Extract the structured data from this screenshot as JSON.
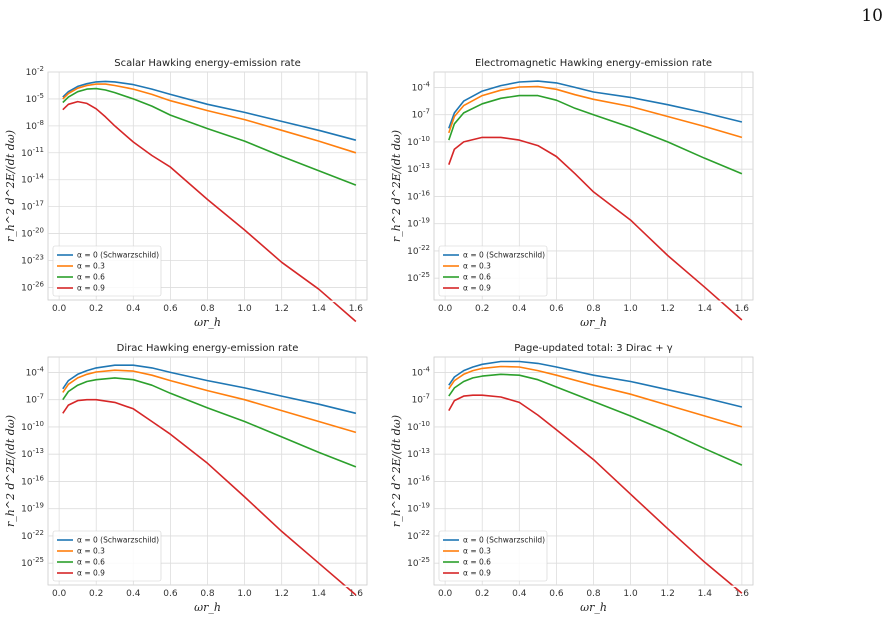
{
  "page_number": "10",
  "colors": {
    "alpha_0": "#1f77b4",
    "alpha_03": "#ff7f0e",
    "alpha_06": "#2ca02c",
    "alpha_09": "#d62728",
    "grid": "#dddddd",
    "background": "#ffffff"
  },
  "chart_data": [
    {
      "type": "line",
      "title": "Scalar Hawking energy-emission rate",
      "xlabel": "ωr_h",
      "ylabel": "r_h^2 d^2E/(dt dω)",
      "yscale": "log",
      "xlim": [
        -0.06,
        1.66
      ],
      "ylim_exp": [
        -27.4,
        -2
      ],
      "xticks": [
        "0.0",
        "0.2",
        "0.4",
        "0.6",
        "0.8",
        "1.0",
        "1.2",
        "1.4",
        "1.6"
      ],
      "yticks": [
        "10^-26",
        "10^-23",
        "10^-20",
        "10^-17",
        "10^-14",
        "10^-11",
        "10^-8",
        "10^-5",
        "10^-2"
      ],
      "grid": true,
      "legend": "lower-left",
      "x": [
        0.02,
        0.05,
        0.1,
        0.15,
        0.2,
        0.25,
        0.3,
        0.4,
        0.5,
        0.6,
        0.8,
        1.0,
        1.2,
        1.4,
        1.6
      ],
      "series": [
        {
          "name": "α = 0 (Schwarzschild)",
          "log10": [
            -4.8,
            -4.2,
            -3.6,
            -3.3,
            -3.1,
            -3.05,
            -3.1,
            -3.4,
            -3.9,
            -4.5,
            -5.6,
            -6.5,
            -7.5,
            -8.5,
            -9.6
          ]
        },
        {
          "name": "α = 0.3",
          "log10": [
            -5.0,
            -4.4,
            -3.8,
            -3.5,
            -3.35,
            -3.35,
            -3.5,
            -3.9,
            -4.5,
            -5.2,
            -6.3,
            -7.3,
            -8.5,
            -9.7,
            -11.0
          ]
        },
        {
          "name": "α = 0.6",
          "log10": [
            -5.4,
            -4.8,
            -4.2,
            -3.9,
            -3.85,
            -4.0,
            -4.3,
            -5.0,
            -5.8,
            -6.8,
            -8.3,
            -9.7,
            -11.4,
            -13.0,
            -14.6
          ]
        },
        {
          "name": "α = 0.9",
          "log10": [
            -6.2,
            -5.6,
            -5.3,
            -5.5,
            -6.1,
            -7.0,
            -8.0,
            -9.8,
            -11.3,
            -12.6,
            -16.2,
            -19.6,
            -23.2,
            -26.2,
            -29.8
          ]
        }
      ]
    },
    {
      "type": "line",
      "title": "Electromagnetic Hawking energy-emission rate",
      "xlabel": "ωr_h",
      "ylabel": "r_h^2 d^2E/(dt dω)",
      "yscale": "log",
      "xlim": [
        -0.06,
        1.66
      ],
      "ylim_exp": [
        -27.4,
        -2.3
      ],
      "xticks": [
        "0.0",
        "0.2",
        "0.4",
        "0.6",
        "0.8",
        "1.0",
        "1.2",
        "1.4",
        "1.6"
      ],
      "yticks": [
        "10^-25",
        "10^-22",
        "10^-19",
        "10^-16",
        "10^-13",
        "10^-10",
        "10^-7",
        "10^-4"
      ],
      "grid": true,
      "legend": "lower-left",
      "x": [
        0.02,
        0.05,
        0.1,
        0.2,
        0.3,
        0.4,
        0.5,
        0.6,
        0.7,
        0.8,
        1.0,
        1.2,
        1.4,
        1.6
      ],
      "series": [
        {
          "name": "α = 0 (Schwarzschild)",
          "log10": [
            -8.5,
            -6.8,
            -5.5,
            -4.4,
            -3.8,
            -3.4,
            -3.3,
            -3.5,
            -4.0,
            -4.5,
            -5.1,
            -5.9,
            -6.8,
            -7.8
          ]
        },
        {
          "name": "α = 0.3",
          "log10": [
            -9.0,
            -7.2,
            -6.0,
            -4.9,
            -4.3,
            -3.95,
            -3.9,
            -4.2,
            -4.8,
            -5.3,
            -6.1,
            -7.2,
            -8.3,
            -9.5
          ]
        },
        {
          "name": "α = 0.6",
          "log10": [
            -9.8,
            -8.0,
            -6.8,
            -5.8,
            -5.2,
            -4.9,
            -4.9,
            -5.4,
            -6.3,
            -7.0,
            -8.4,
            -10.0,
            -11.8,
            -13.5
          ]
        },
        {
          "name": "α = 0.9",
          "log10": [
            -12.5,
            -10.8,
            -10.0,
            -9.5,
            -9.5,
            -9.8,
            -10.4,
            -11.6,
            -13.5,
            -15.5,
            -18.6,
            -22.5,
            -26.0,
            -29.6
          ]
        }
      ]
    },
    {
      "type": "line",
      "title": "Dirac Hawking energy-emission rate",
      "xlabel": "ωr_h",
      "ylabel": "r_h^2 d^2E/(dt dω)",
      "yscale": "log",
      "xlim": [
        -0.06,
        1.66
      ],
      "ylim_exp": [
        -27.4,
        -2.3
      ],
      "xticks": [
        "0.0",
        "0.2",
        "0.4",
        "0.6",
        "0.8",
        "1.0",
        "1.2",
        "1.4",
        "1.6"
      ],
      "yticks": [
        "10^-25",
        "10^-22",
        "10^-19",
        "10^-16",
        "10^-13",
        "10^-10",
        "10^-7",
        "10^-4"
      ],
      "grid": true,
      "legend": "lower-left",
      "x": [
        0.02,
        0.05,
        0.1,
        0.15,
        0.2,
        0.3,
        0.4,
        0.5,
        0.6,
        0.8,
        1.0,
        1.2,
        1.4,
        1.6
      ],
      "series": [
        {
          "name": "α = 0 (Schwarzschild)",
          "log10": [
            -5.8,
            -4.9,
            -4.2,
            -3.8,
            -3.5,
            -3.2,
            -3.2,
            -3.5,
            -4.0,
            -4.9,
            -5.7,
            -6.6,
            -7.5,
            -8.5
          ]
        },
        {
          "name": "α = 0.3",
          "log10": [
            -6.2,
            -5.3,
            -4.6,
            -4.2,
            -3.95,
            -3.75,
            -3.85,
            -4.3,
            -4.9,
            -6.0,
            -7.0,
            -8.2,
            -9.4,
            -10.6
          ]
        },
        {
          "name": "α = 0.6",
          "log10": [
            -7.0,
            -6.1,
            -5.4,
            -5.0,
            -4.8,
            -4.6,
            -4.8,
            -5.4,
            -6.3,
            -7.9,
            -9.4,
            -11.1,
            -12.8,
            -14.4
          ]
        },
        {
          "name": "α = 0.9",
          "log10": [
            -8.5,
            -7.6,
            -7.1,
            -7.0,
            -7.0,
            -7.3,
            -8.0,
            -9.4,
            -10.8,
            -14.0,
            -17.7,
            -21.5,
            -25.0,
            -28.5
          ]
        }
      ]
    },
    {
      "type": "line",
      "title": "Page-updated total: 3 Dirac + γ",
      "xlabel": "ωr_h",
      "ylabel": "r_h^2 d^2E/(dt dω)",
      "yscale": "log",
      "xlim": [
        -0.06,
        1.66
      ],
      "ylim_exp": [
        -27.4,
        -2.3
      ],
      "xticks": [
        "0.0",
        "0.2",
        "0.4",
        "0.6",
        "0.8",
        "1.0",
        "1.2",
        "1.4",
        "1.6"
      ],
      "yticks": [
        "10^-25",
        "10^-22",
        "10^-19",
        "10^-16",
        "10^-13",
        "10^-10",
        "10^-7",
        "10^-4"
      ],
      "grid": true,
      "legend": "lower-left",
      "x": [
        0.02,
        0.05,
        0.1,
        0.15,
        0.2,
        0.3,
        0.4,
        0.5,
        0.6,
        0.8,
        1.0,
        1.2,
        1.4,
        1.6
      ],
      "series": [
        {
          "name": "α = 0 (Schwarzschild)",
          "log10": [
            -5.4,
            -4.5,
            -3.8,
            -3.4,
            -3.1,
            -2.8,
            -2.8,
            -3.0,
            -3.4,
            -4.3,
            -5.0,
            -5.9,
            -6.8,
            -7.8
          ]
        },
        {
          "name": "α = 0.3",
          "log10": [
            -5.8,
            -4.9,
            -4.2,
            -3.8,
            -3.55,
            -3.35,
            -3.4,
            -3.8,
            -4.3,
            -5.4,
            -6.4,
            -7.6,
            -8.8,
            -10.0
          ]
        },
        {
          "name": "α = 0.6",
          "log10": [
            -6.6,
            -5.7,
            -5.0,
            -4.6,
            -4.4,
            -4.2,
            -4.3,
            -4.8,
            -5.6,
            -7.2,
            -8.8,
            -10.5,
            -12.4,
            -14.2
          ]
        },
        {
          "name": "α = 0.9",
          "log10": [
            -8.2,
            -7.1,
            -6.6,
            -6.5,
            -6.5,
            -6.7,
            -7.3,
            -8.7,
            -10.3,
            -13.6,
            -17.4,
            -21.2,
            -24.9,
            -28.3
          ]
        }
      ]
    }
  ]
}
